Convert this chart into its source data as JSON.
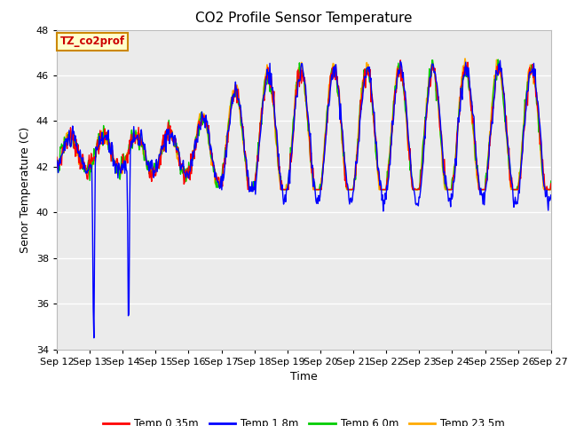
{
  "title": "CO2 Profile Sensor Temperature",
  "xlabel": "Time",
  "ylabel": "Senor Temperature (C)",
  "ylim": [
    34,
    48
  ],
  "yticks": [
    34,
    36,
    38,
    40,
    42,
    44,
    46,
    48
  ],
  "xtick_labels": [
    "Sep 12",
    "Sep 13",
    "Sep 14",
    "Sep 15",
    "Sep 16",
    "Sep 17",
    "Sep 18",
    "Sep 19",
    "Sep 20",
    "Sep 21",
    "Sep 22",
    "Sep 23",
    "Sep 24",
    "Sep 25",
    "Sep 26",
    "Sep 27"
  ],
  "legend_labels": [
    "Temp 0.35m",
    "Temp 1.8m",
    "Temp 6.0m",
    "Temp 23.5m"
  ],
  "legend_colors": [
    "#ff0000",
    "#0000ff",
    "#00cc00",
    "#ffaa00"
  ],
  "annotation_text": "TZ_co2prof",
  "annotation_color": "#cc0000",
  "annotation_bg": "#ffffcc",
  "annotation_border": "#cc8800",
  "plot_bg": "#ebebeb",
  "title_fontsize": 11,
  "axis_label_fontsize": 9,
  "tick_fontsize": 8
}
